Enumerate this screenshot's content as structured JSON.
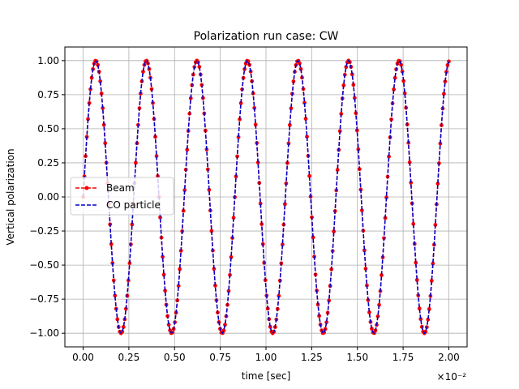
{
  "chart_data": {
    "type": "line",
    "title": "Polarization run case: CW",
    "xlabel": "time [sec]",
    "ylabel": "Vertical polarization",
    "x_scale_note": "×10⁻²",
    "xlim": [
      -0.1,
      2.1
    ],
    "ylim": [
      -1.1,
      1.1
    ],
    "grid": true,
    "legend_position": "center-left",
    "x_ticks": [
      0.0,
      0.25,
      0.5,
      0.75,
      1.0,
      1.25,
      1.5,
      1.75,
      2.0
    ],
    "x_tick_labels": [
      "0.00",
      "0.25",
      "0.50",
      "0.75",
      "1.00",
      "1.25",
      "1.50",
      "1.75",
      "2.00"
    ],
    "y_ticks": [
      1.0,
      0.75,
      0.5,
      0.25,
      0.0,
      -0.25,
      -0.5,
      -0.75,
      -1.0
    ],
    "y_tick_labels": [
      "1.00",
      "0.75",
      "0.50",
      "0.25",
      "0.00",
      "−0.25",
      "−0.50",
      "−0.75",
      "−1.00"
    ],
    "series": [
      {
        "name": "Beam",
        "color": "#ff0000",
        "style": "dashed-dots"
      },
      {
        "name": "CO particle",
        "color": "#0000cc",
        "style": "dashed"
      }
    ],
    "signal": {
      "function": "sine",
      "x_start": 0.0,
      "x_end": 2.0,
      "period": 0.2765,
      "amplitude": 1.0,
      "point_count": 300
    }
  }
}
